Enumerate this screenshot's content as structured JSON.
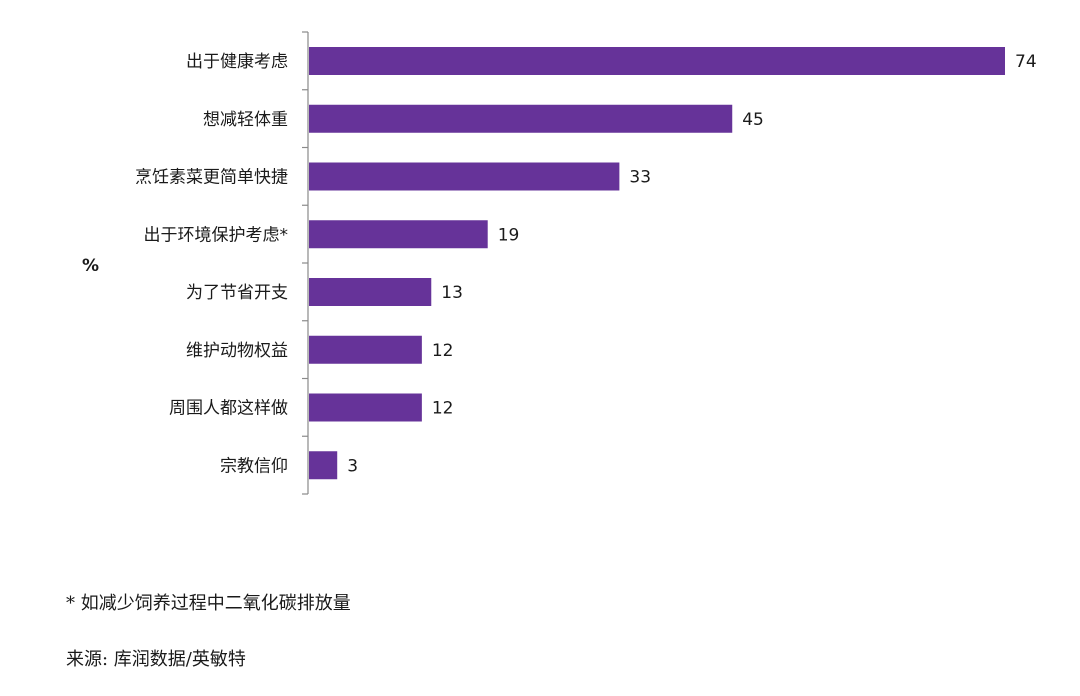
{
  "chart_data": {
    "type": "bar",
    "orientation": "horizontal",
    "categories": [
      "出于健康考虑",
      "想减轻体重",
      "烹饪素菜更简单快捷",
      "出于环境保护考虑*",
      "为了节省开支",
      "维护动物权益",
      "周围人都这样做",
      "宗教信仰"
    ],
    "values": [
      74,
      45,
      33,
      19,
      13,
      12,
      12,
      3
    ],
    "unit_label": "%",
    "bar_color": "#663399",
    "xlim": [
      0,
      74
    ],
    "grid": false,
    "legend": "none"
  },
  "footnote": "* 如减少饲养过程中二氧化碳排放量",
  "source": "来源: 库润数据/英敏特"
}
